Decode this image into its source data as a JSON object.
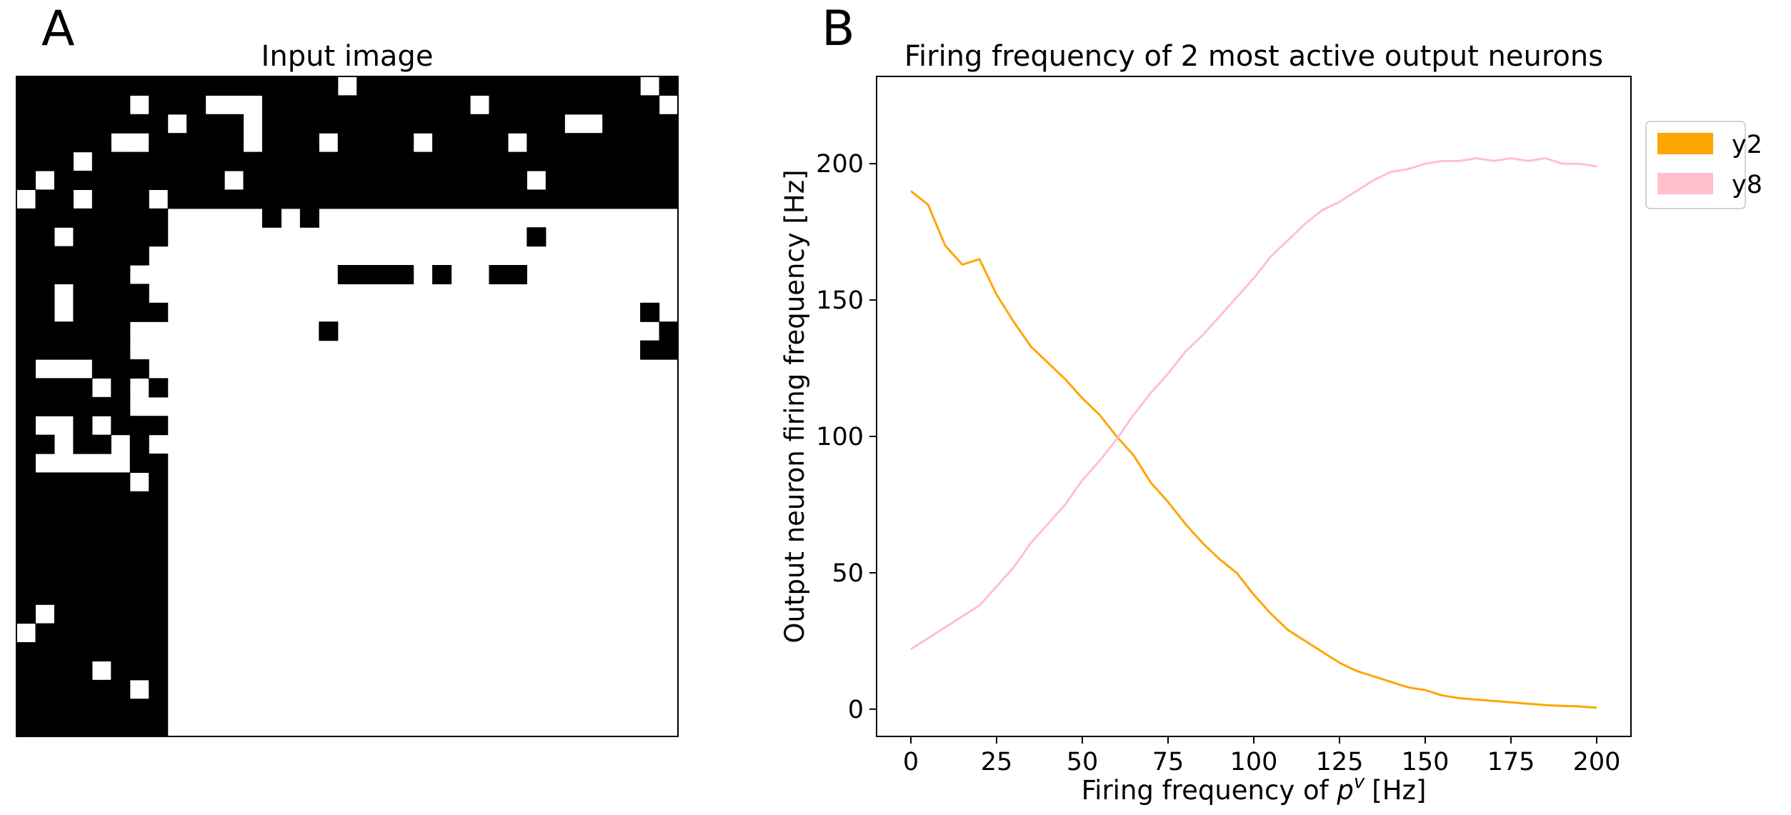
{
  "chart_data": [
    {
      "type": "heatmap",
      "panel_label": "A",
      "title": "Input image",
      "colors": {
        "on": "#000000",
        "off": "#ffffff"
      },
      "rows": [
        "11111111111111111011111111111111101",
        "11111101110001111111111101111111110",
        "11111111011101111111111111111001111",
        "11111001111101110111101111011111111",
        "11101111111111111111111111111111111",
        "10111111111011111111111111101111111",
        "01101110111111111111111111111111111",
        "11111111000001010000000000000000000",
        "11011111000000000000000000010000000",
        "11111110000000000000000000000000000",
        "11111100000000000111101001100000000",
        "11011110000000000000000000000000000",
        "11011111000000000000000000000000010",
        "11111100000000001000000000000000001",
        "11111100000000000000000000000000011",
        "10001110000000000000000000000000000",
        "11110101000000000000000000000000000",
        "11111100000000000000000000000000000",
        "10010111000000000000000000000000000",
        "11011010000000000000000000000000000",
        "10000011000000000000000000000000000",
        "11111101000000000000000000000000000",
        "11111111000000000000000000000000000",
        "11111111000000000000000000000000000",
        "11111111000000000000000000000000000",
        "11111111000000000000000000000000000",
        "11111111000000000000000000000000000",
        "11111111000000000000000000000000000",
        "10111111000000000000000000000000000",
        "01111111000000000000000000000000000",
        "11111111000000000000000000000000000",
        "11110111000000000000000000000000000",
        "11111101000000000000000000000000000",
        "11111111000000000000000000000000000",
        "11111111000000000000000000000000000"
      ]
    },
    {
      "type": "line",
      "panel_label": "B",
      "title": "Firing frequency of 2 most active output neurons",
      "xlabel_main": "Firing frequency of",
      "xlabel_symbol": "p",
      "xlabel_superscript": "v",
      "xlabel_unit": "[Hz]",
      "ylabel": "Output neuron firing frequency [Hz]",
      "xlim": [
        -10,
        210
      ],
      "ylim": [
        -10,
        232
      ],
      "xticks": [
        "0",
        "25",
        "50",
        "75",
        "100",
        "125",
        "150",
        "175",
        "200"
      ],
      "yticks": [
        "0",
        "50",
        "100",
        "150",
        "200"
      ],
      "legend_position": "outside-upper-right",
      "series": [
        {
          "name": "y2",
          "color": "#FFA500",
          "x": [
            0,
            5,
            10,
            15,
            20,
            25,
            30,
            35,
            40,
            45,
            50,
            55,
            60,
            65,
            70,
            75,
            80,
            85,
            90,
            95,
            100,
            105,
            110,
            115,
            120,
            125,
            130,
            135,
            140,
            145,
            150,
            155,
            160,
            165,
            170,
            175,
            180,
            185,
            190,
            195,
            200
          ],
          "y": [
            190,
            185,
            170,
            163,
            165,
            152,
            142,
            133,
            127,
            121,
            114,
            108,
            100,
            93,
            83,
            76,
            68,
            61,
            55,
            50,
            42,
            35,
            29,
            25,
            21,
            17,
            14,
            12,
            10,
            8,
            7,
            5,
            4,
            3.5,
            3,
            2.5,
            2,
            1.5,
            1.2,
            1,
            0.5
          ]
        },
        {
          "name": "y8",
          "color": "#FFC0CB",
          "x": [
            0,
            5,
            10,
            15,
            20,
            25,
            30,
            35,
            40,
            45,
            50,
            55,
            60,
            65,
            70,
            75,
            80,
            85,
            90,
            95,
            100,
            105,
            110,
            115,
            120,
            125,
            130,
            135,
            140,
            145,
            150,
            155,
            160,
            165,
            170,
            175,
            180,
            185,
            190,
            195,
            200
          ],
          "y": [
            22,
            26,
            30,
            34,
            38,
            45,
            52,
            61,
            68,
            75,
            84,
            91,
            99,
            108,
            116,
            123,
            131,
            137,
            144,
            151,
            158,
            166,
            172,
            178,
            183,
            186,
            190,
            194,
            197,
            198,
            200,
            201,
            201,
            202,
            201,
            202,
            201,
            202,
            200,
            200,
            199
          ]
        }
      ]
    }
  ]
}
